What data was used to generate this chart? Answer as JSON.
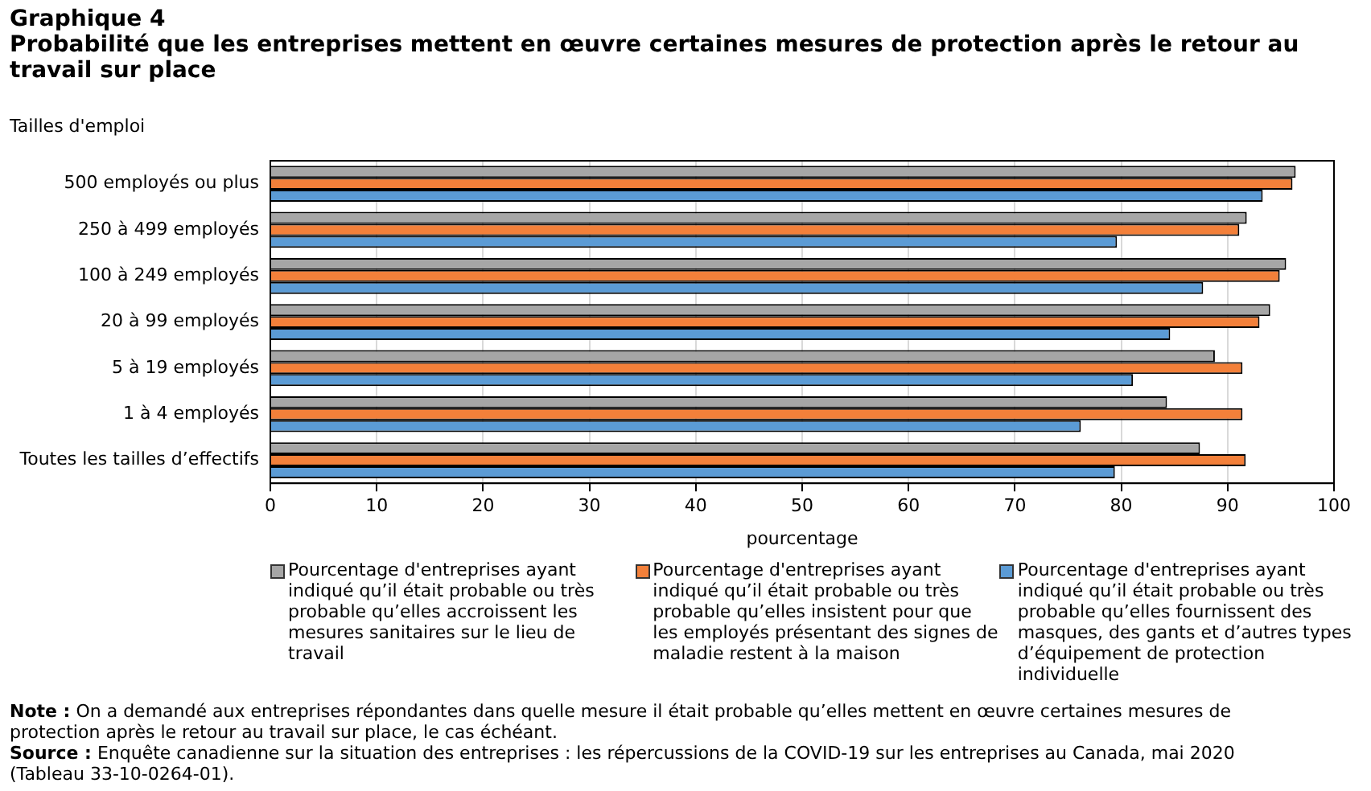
{
  "chart_data": {
    "type": "bar",
    "orientation": "horizontal",
    "title": "Graphique 4",
    "subtitle": "Probabilité  que les entreprises mettent en œuvre certaines mesures de protection après le retour au travail sur place",
    "ylabel": "Tailles d'emploi",
    "xlabel": "pourcentage",
    "categories": [
      "500 employés ou plus",
      "250 à 499 employés",
      "100 à 249 employés",
      "20 à 99 employés",
      "5 à 19 employés",
      "1 à 4 employés",
      "Toutes les tailles d’effectifs"
    ],
    "series": [
      {
        "name": "Pourcentage d'entreprises ayant indiqué qu’il était probable ou très probable qu’elles accroissent les mesures sanitaires sur le lieu de travail",
        "color": "#a6a6a6",
        "values": [
          96.4,
          91.8,
          95.5,
          94.0,
          88.8,
          84.3,
          87.4
        ]
      },
      {
        "name": "Pourcentage d'entreprises ayant indiqué qu’il était probable ou très probable qu’elles insistent pour que les employés présentant des signes de maladie restent à la maison",
        "color": "#f3803a",
        "values": [
          96.1,
          91.1,
          94.9,
          93.0,
          91.4,
          91.4,
          91.7
        ]
      },
      {
        "name": "Pourcentage d'entreprises ayant indiqué qu’il était probable ou très probable qu’elles fournissent des masques, des gants et d’autres types d’équipement de protection individuelle",
        "color": "#5b9bd5",
        "values": [
          93.3,
          79.6,
          87.7,
          84.6,
          81.1,
          76.2,
          79.4
        ]
      }
    ],
    "xlim": [
      0,
      100
    ],
    "xticks": [
      0,
      10,
      20,
      30,
      40,
      50,
      60,
      70,
      80,
      90,
      100
    ],
    "grid": "x",
    "legend": "bottom",
    "annotations": [
      "Note : On a demandé aux entreprises répondantes dans quelle mesure il était probable qu’elles mettent en œuvre certaines mesures de protection après le retour au travail sur place, le cas échéant.",
      "Source : Enquête canadienne sur la situation des entreprises : les répercussions de la COVID-19 sur les entreprises au Canada, mai 2020 (Tableau 33-10-0264-01)."
    ]
  }
}
